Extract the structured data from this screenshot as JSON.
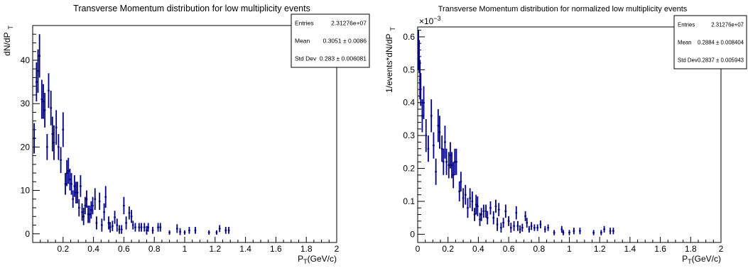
{
  "chart_data": [
    {
      "type": "scatter",
      "title": "Transverse Momentum distribution for low multiplicity events",
      "ylabel": "dN/dP",
      "ylabel_sub": "T",
      "xlabel": "P",
      "xlabel_sub": "T",
      "xlabel_unit": "(GeV/c)",
      "xlim": [
        0,
        2
      ],
      "ylim": [
        -2,
        48
      ],
      "xticks": [
        {
          "v": 0.2,
          "label": "0.2"
        },
        {
          "v": 0.4,
          "label": "0.4"
        },
        {
          "v": 0.6,
          "label": "0.6"
        },
        {
          "v": 0.8,
          "label": "0.8"
        },
        {
          "v": 1.0,
          "label": "1"
        },
        {
          "v": 1.2,
          "label": "1.2"
        },
        {
          "v": 1.4,
          "label": "1.4"
        },
        {
          "v": 1.6,
          "label": "1.6"
        },
        {
          "v": 1.8,
          "label": "1.8"
        },
        {
          "v": 2.0,
          "label": "2"
        }
      ],
      "yticks": [
        {
          "v": 0,
          "label": "0"
        },
        {
          "v": 10,
          "label": "10"
        },
        {
          "v": 20,
          "label": "20"
        },
        {
          "v": 30,
          "label": "30"
        },
        {
          "v": 40,
          "label": "40"
        }
      ],
      "stats": [
        {
          "label": "Entries",
          "value": "2.31276e+07"
        },
        {
          "label": "Mean",
          "value": "0.3051 ± 0.0086"
        },
        {
          "label": "Std Dev",
          "value": "0.283 ± 0.006081"
        }
      ],
      "series": [
        {
          "color": "#000080",
          "points": [
            [
              0.01,
              22,
              3.5
            ],
            [
              0.025,
              35,
              4.5
            ],
            [
              0.035,
              37.5,
              5
            ],
            [
              0.045,
              41,
              5
            ],
            [
              0.06,
              31,
              4.5
            ],
            [
              0.07,
              30.5,
              4
            ],
            [
              0.08,
              28.5,
              4
            ],
            [
              0.095,
              20,
              3
            ],
            [
              0.105,
              33,
              4
            ],
            [
              0.12,
              29,
              4
            ],
            [
              0.13,
              23,
              4
            ],
            [
              0.14,
              21,
              4
            ],
            [
              0.155,
              24.5,
              4
            ],
            [
              0.17,
              20,
              3
            ],
            [
              0.185,
              17,
              3
            ],
            [
              0.2,
              24,
              4
            ],
            [
              0.215,
              11.5,
              2.5
            ],
            [
              0.225,
              14,
              3
            ],
            [
              0.235,
              14.5,
              3
            ],
            [
              0.245,
              12.5,
              2.5
            ],
            [
              0.255,
              11.5,
              2.5
            ],
            [
              0.265,
              8,
              2
            ],
            [
              0.275,
              11,
              2.5
            ],
            [
              0.285,
              9.5,
              2.5
            ],
            [
              0.295,
              9.5,
              2.5
            ],
            [
              0.305,
              6,
              2
            ],
            [
              0.315,
              11,
              2.5
            ],
            [
              0.325,
              5,
              2
            ],
            [
              0.335,
              4,
              2
            ],
            [
              0.345,
              6.5,
              2
            ],
            [
              0.355,
              8,
              2
            ],
            [
              0.365,
              4.5,
              2
            ],
            [
              0.375,
              4.5,
              2
            ],
            [
              0.385,
              5.5,
              2
            ],
            [
              0.395,
              6.5,
              2
            ],
            [
              0.41,
              8,
              2.5
            ],
            [
              0.42,
              2.5,
              1.5
            ],
            [
              0.44,
              7.5,
              2
            ],
            [
              0.455,
              2,
              1.5
            ],
            [
              0.47,
              5,
              2
            ],
            [
              0.48,
              8.5,
              2.5
            ],
            [
              0.5,
              2.5,
              1.5
            ],
            [
              0.51,
              1.5,
              1.2
            ],
            [
              0.525,
              1.8,
              1.2
            ],
            [
              0.54,
              3.8,
              1.5
            ],
            [
              0.555,
              2,
              1.5
            ],
            [
              0.57,
              1,
              1
            ],
            [
              0.585,
              1,
              1
            ],
            [
              0.6,
              6.5,
              2
            ],
            [
              0.615,
              2.5,
              1.5
            ],
            [
              0.635,
              4.8,
              1.5
            ],
            [
              0.65,
              4,
              1.5
            ],
            [
              0.66,
              2,
              1
            ],
            [
              0.675,
              1.5,
              1
            ],
            [
              0.7,
              1.5,
              1
            ],
            [
              0.715,
              1.5,
              1
            ],
            [
              0.735,
              1.5,
              1
            ],
            [
              0.75,
              0.8,
              1
            ],
            [
              0.76,
              1.5,
              1
            ],
            [
              0.79,
              0.8,
              0.8
            ],
            [
              0.825,
              1.5,
              1
            ],
            [
              0.84,
              1.5,
              1
            ],
            [
              0.9,
              0.3,
              0.5
            ],
            [
              0.95,
              1.2,
              1
            ],
            [
              0.97,
              0.5,
              0.8
            ],
            [
              1.0,
              0.3,
              0.5
            ],
            [
              1.03,
              0.8,
              0.8
            ],
            [
              1.07,
              0.8,
              0.8
            ],
            [
              1.16,
              0.3,
              0.5
            ],
            [
              1.21,
              0.3,
              0.5
            ],
            [
              1.23,
              1.2,
              0.8
            ],
            [
              1.27,
              0.8,
              0.8
            ],
            [
              1.29,
              0.8,
              0.8
            ]
          ]
        }
      ]
    },
    {
      "type": "scatter",
      "title": "Transverse Momentum distribution for normalized low multiplicity events",
      "ylabel": "1/events*dN/dP",
      "ylabel_sub": "T",
      "xlabel": "P",
      "xlabel_sub": "T",
      "xlabel_unit": "(GeV/c)",
      "yexponent": "×10",
      "yexponent_power": "−3",
      "xlim": [
        0,
        2
      ],
      "ylim": [
        -0.025,
        0.63
      ],
      "xticks": [
        {
          "v": 0,
          "label": "0"
        },
        {
          "v": 0.2,
          "label": "0.2"
        },
        {
          "v": 0.4,
          "label": "0.4"
        },
        {
          "v": 0.6,
          "label": "0.6"
        },
        {
          "v": 0.8,
          "label": "0.8"
        },
        {
          "v": 1.0,
          "label": "1"
        },
        {
          "v": 1.2,
          "label": "1.2"
        },
        {
          "v": 1.4,
          "label": "1.4"
        },
        {
          "v": 1.6,
          "label": "1.6"
        },
        {
          "v": 1.8,
          "label": "1.8"
        },
        {
          "v": 2.0,
          "label": "2"
        }
      ],
      "yticks": [
        {
          "v": 0,
          "label": "0"
        },
        {
          "v": 0.1,
          "label": "0.1"
        },
        {
          "v": 0.2,
          "label": "0.2"
        },
        {
          "v": 0.3,
          "label": "0.3"
        },
        {
          "v": 0.4,
          "label": "0.4"
        },
        {
          "v": 0.5,
          "label": "0.5"
        },
        {
          "v": 0.6,
          "label": "0.6"
        }
      ],
      "stats": [
        {
          "label": "Entries",
          "value": "2.31276e+07"
        },
        {
          "label": "Mean",
          "value": "0.2884 ± 0.008404"
        },
        {
          "label": "Std Dev",
          "value": "0.2837 ± 0.005943"
        }
      ],
      "series": [
        {
          "color": "#000080",
          "points": [
            [
              0.005,
              0.56,
              0.06
            ],
            [
              0.01,
              0.54,
              0.05
            ],
            [
              0.015,
              0.47,
              0.06
            ],
            [
              0.02,
              0.44,
              0.05
            ],
            [
              0.03,
              0.36,
              0.05
            ],
            [
              0.04,
              0.4,
              0.05
            ],
            [
              0.055,
              0.3,
              0.05
            ],
            [
              0.07,
              0.26,
              0.04
            ],
            [
              0.09,
              0.36,
              0.05
            ],
            [
              0.105,
              0.27,
              0.04
            ],
            [
              0.12,
              0.19,
              0.04
            ],
            [
              0.135,
              0.33,
              0.05
            ],
            [
              0.145,
              0.31,
              0.05
            ],
            [
              0.16,
              0.26,
              0.04
            ],
            [
              0.17,
              0.22,
              0.04
            ],
            [
              0.18,
              0.28,
              0.05
            ],
            [
              0.19,
              0.22,
              0.04
            ],
            [
              0.205,
              0.21,
              0.04
            ],
            [
              0.215,
              0.24,
              0.04
            ],
            [
              0.225,
              0.21,
              0.04
            ],
            [
              0.235,
              0.18,
              0.04
            ],
            [
              0.245,
              0.22,
              0.04
            ],
            [
              0.255,
              0.22,
              0.04
            ],
            [
              0.275,
              0.13,
              0.03
            ],
            [
              0.285,
              0.16,
              0.03
            ],
            [
              0.3,
              0.11,
              0.03
            ],
            [
              0.315,
              0.12,
              0.03
            ],
            [
              0.33,
              0.08,
              0.03
            ],
            [
              0.345,
              0.11,
              0.03
            ],
            [
              0.36,
              0.1,
              0.03
            ],
            [
              0.375,
              0.06,
              0.02
            ],
            [
              0.385,
              0.09,
              0.03
            ],
            [
              0.395,
              0.085,
              0.03
            ],
            [
              0.41,
              0.045,
              0.02
            ],
            [
              0.42,
              0.06,
              0.02
            ],
            [
              0.435,
              0.07,
              0.02
            ],
            [
              0.45,
              0.07,
              0.02
            ],
            [
              0.46,
              0.05,
              0.02
            ],
            [
              0.48,
              0.08,
              0.02
            ],
            [
              0.5,
              0.05,
              0.02
            ],
            [
              0.515,
              0.085,
              0.02
            ],
            [
              0.525,
              0.03,
              0.02
            ],
            [
              0.535,
              0.075,
              0.02
            ],
            [
              0.55,
              0.02,
              0.015
            ],
            [
              0.565,
              0.035,
              0.015
            ],
            [
              0.58,
              0.07,
              0.02
            ],
            [
              0.6,
              0.04,
              0.015
            ],
            [
              0.615,
              0.02,
              0.015
            ],
            [
              0.635,
              0.025,
              0.015
            ],
            [
              0.65,
              0.065,
              0.02
            ],
            [
              0.66,
              0.025,
              0.015
            ],
            [
              0.675,
              0.015,
              0.012
            ],
            [
              0.69,
              0.02,
              0.012
            ],
            [
              0.71,
              0.055,
              0.015
            ],
            [
              0.72,
              0.035,
              0.015
            ],
            [
              0.735,
              0.015,
              0.01
            ],
            [
              0.75,
              0.025,
              0.012
            ],
            [
              0.77,
              0.02,
              0.01
            ],
            [
              0.79,
              0.02,
              0.01
            ],
            [
              0.81,
              0.03,
              0.012
            ],
            [
              0.84,
              0.015,
              0.01
            ],
            [
              0.86,
              0.02,
              0.01
            ],
            [
              0.9,
              0.005,
              0.008
            ],
            [
              0.95,
              0.015,
              0.01
            ],
            [
              0.96,
              0.005,
              0.008
            ],
            [
              1.0,
              0.005,
              0.008
            ],
            [
              1.03,
              0.01,
              0.01
            ],
            [
              1.07,
              0.01,
              0.01
            ],
            [
              1.16,
              0.005,
              0.008
            ],
            [
              1.21,
              0.005,
              0.008
            ],
            [
              1.23,
              0.015,
              0.01
            ],
            [
              1.27,
              0.01,
              0.01
            ],
            [
              1.29,
              0.01,
              0.01
            ]
          ]
        }
      ]
    }
  ]
}
